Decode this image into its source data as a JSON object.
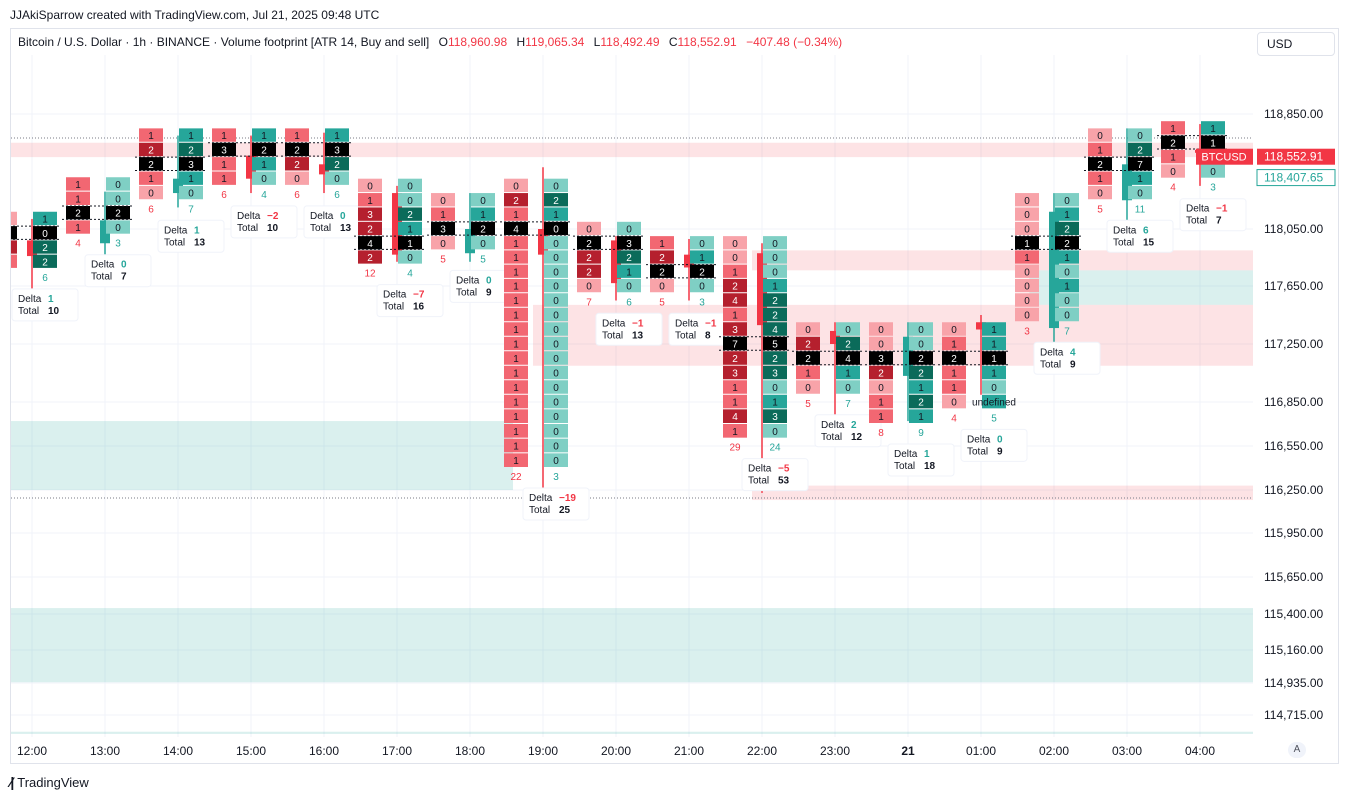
{
  "header": {
    "credit": "JJAkiSparrow created with TradingView.com, Jul 21, 2025 09:48 UTC",
    "title": "Bitcoin / U.S. Dollar · 1h · BINANCE · Volume footprint [ATR 14, Buy and sell]",
    "open_label": "O",
    "open": "118,960.98",
    "high_label": "H",
    "high": "119,065.34",
    "low_label": "L",
    "low": "118,492.49",
    "close_label": "C",
    "close": "118,552.91",
    "change": "−407.48 (−0.34%)",
    "currency": "USD"
  },
  "brand": "TradingView",
  "auto_label": "A",
  "colors": {
    "up": "#26a69a",
    "down": "#f23645",
    "dark_up": "#0b4d3f",
    "dark_down": "#6b1320",
    "poc": "#000000"
  },
  "price_tags": [
    {
      "symbol": "BTCUSD",
      "value": "118,552.91",
      "price": 118552.91,
      "color": "#f23645"
    },
    {
      "value": "118,407.65",
      "price": 118407.65,
      "color": "#26a69a"
    }
  ],
  "chart_data": {
    "type": "footprint",
    "symbol": "BTCUSD",
    "interval": "1h",
    "y_ticks": [
      118850,
      118050,
      117650,
      117250,
      116850,
      116550,
      116250,
      115950,
      115650,
      115400,
      115160,
      114935,
      114715
    ],
    "y_tick_labels": [
      "118,850.00",
      "118,050.00",
      "117,650.00",
      "117,250.00",
      "116,850.00",
      "116,550.00",
      "116,250.00",
      "115,950.00",
      "115,650.00",
      "115,400.00",
      "115,160.00",
      "114,935.00",
      "114,715.00"
    ],
    "x_ticks": [
      {
        "label": "12:00",
        "bar": 0
      },
      {
        "label": "13:00",
        "bar": 1
      },
      {
        "label": "14:00",
        "bar": 2
      },
      {
        "label": "15:00",
        "bar": 3
      },
      {
        "label": "16:00",
        "bar": 4
      },
      {
        "label": "17:00",
        "bar": 5
      },
      {
        "label": "18:00",
        "bar": 6
      },
      {
        "label": "19:00",
        "bar": 7
      },
      {
        "label": "20:00",
        "bar": 8
      },
      {
        "label": "21:00",
        "bar": 9
      },
      {
        "label": "22:00",
        "bar": 10
      },
      {
        "label": "23:00",
        "bar": 11
      },
      {
        "label": "21",
        "bar": 12,
        "bold": true
      },
      {
        "label": "01:00",
        "bar": 13
      },
      {
        "label": "02:00",
        "bar": 14
      },
      {
        "label": "03:00",
        "bar": 15
      },
      {
        "label": "04:00",
        "bar": 16
      }
    ],
    "zones": [
      {
        "from": 118650,
        "to": 118550,
        "color": "down"
      },
      {
        "from": 117900,
        "to": 117760,
        "color": "down",
        "from_bar": 10
      },
      {
        "from": 117760,
        "to": 117520,
        "color": "up",
        "from_bar": 13.8
      },
      {
        "from": 117520,
        "to": 117100,
        "color": "down",
        "from_bar": 7
      },
      {
        "from": 116720,
        "to": 116250,
        "color": "up",
        "to_bar": 7
      },
      {
        "from": 116280,
        "to": 116180,
        "color": "down",
        "from_bar": 10
      },
      {
        "from": 115440,
        "to": 114940,
        "color": "up"
      },
      {
        "from": 114600,
        "to": 114585,
        "color": "up"
      }
    ],
    "bars": [
      {
        "time": "12:00",
        "o": 117970,
        "h": 118120,
        "l": 117540,
        "c": 117860,
        "top": 118170,
        "step": 100,
        "sell": [
          0,
          1,
          2,
          1
        ],
        "buy": [
          1,
          0,
          2,
          2
        ],
        "poc": 1,
        "sell_total": 3,
        "buy_total": 6,
        "delta": "1",
        "total": "10"
      },
      {
        "time": "13:00",
        "o": 117950,
        "h": 118310,
        "l": 117850,
        "c": 118110,
        "top": 118410,
        "step": 100,
        "sell": [
          1,
          1,
          2,
          1
        ],
        "buy": [
          0,
          0,
          2,
          0
        ],
        "poc": 2,
        "sell_total": 4,
        "buy_total": 3,
        "delta": "0",
        "total": "7"
      },
      {
        "time": "14:00",
        "o": 118300,
        "h": 118700,
        "l": 118200,
        "c": 118400,
        "top": 118750,
        "step": 100,
        "sell": [
          1,
          2,
          2,
          1,
          0
        ],
        "buy": [
          1,
          2,
          3,
          1,
          0
        ],
        "poc": 2,
        "sell_total": 6,
        "buy_total": 7,
        "delta": "1",
        "total": "13"
      },
      {
        "time": "15:00",
        "o": 118560,
        "h": 118700,
        "l": 118300,
        "c": 118400,
        "top": 118750,
        "step": 100,
        "sell": [
          1,
          3,
          1,
          1
        ],
        "buy": [
          1,
          2,
          1,
          0
        ],
        "poc": 1,
        "sell_total": 6,
        "buy_total": 4,
        "delta": "−2",
        "total": "10"
      },
      {
        "time": "16:00",
        "o": 118500,
        "h": 118720,
        "l": 118300,
        "c": 118430,
        "top": 118750,
        "step": 100,
        "sell": [
          1,
          2,
          2,
          0
        ],
        "buy": [
          1,
          3,
          2,
          0
        ],
        "poc": 1,
        "sell_total": 6,
        "buy_total": 6,
        "delta": "0",
        "total": "13"
      },
      {
        "time": "17:00",
        "o": 118300,
        "h": 118350,
        "l": 117820,
        "c": 117870,
        "top": 118400,
        "step": 100,
        "sell": [
          0,
          1,
          3,
          2,
          4,
          2
        ],
        "buy": [
          0,
          0,
          2,
          1,
          1,
          0
        ],
        "poc": 4,
        "sell_total": 12,
        "buy_total": 4,
        "delta": "−7",
        "total": "16"
      },
      {
        "time": "18:00",
        "o": 117880,
        "h": 118300,
        "l": 117820,
        "c": 118050,
        "top": 118300,
        "step": 100,
        "sell": [
          0,
          1,
          3,
          0
        ],
        "buy": [
          0,
          1,
          2,
          0
        ],
        "poc": 2,
        "sell_total": 5,
        "buy_total": 5,
        "delta": "0",
        "total": "9"
      },
      {
        "time": "19:00",
        "o": 118050,
        "h": 118480,
        "l": 116130,
        "c": 117870,
        "top": 118400,
        "step": 100,
        "sell": [
          0,
          2,
          1,
          4,
          1,
          1,
          1,
          1,
          1,
          1,
          1,
          1,
          1,
          1,
          1,
          1,
          1,
          1,
          1,
          1
        ],
        "buy": [
          0,
          2,
          1,
          0,
          0,
          0,
          0,
          0,
          0,
          0,
          0,
          0,
          0,
          0,
          0,
          0,
          0,
          0,
          0,
          0
        ],
        "poc": 3,
        "sell_total": 22,
        "buy_total": 3,
        "delta": "−19",
        "total": "25"
      },
      {
        "time": "20:00",
        "o": 117970,
        "h": 118000,
        "l": 117550,
        "c": 117670,
        "top": 118100,
        "step": 100,
        "sell": [
          0,
          2,
          2,
          2,
          0
        ],
        "buy": [
          0,
          3,
          2,
          1,
          0
        ],
        "poc": 1,
        "sell_total": 7,
        "buy_total": 6,
        "delta": "−1",
        "total": "13"
      },
      {
        "time": "21:00",
        "o": 117870,
        "h": 117980,
        "l": 117550,
        "c": 117780,
        "top": 118000,
        "step": 100,
        "sell": [
          1,
          2,
          2,
          0
        ],
        "buy": [
          0,
          1,
          2,
          0
        ],
        "poc": 2,
        "sell_total": 5,
        "buy_total": 3,
        "delta": "−1",
        "total": "8"
      },
      {
        "time": "22:00",
        "o": 117880,
        "h": 117950,
        "l": 116230,
        "c": 117380,
        "top": 118000,
        "step": 100,
        "sell": [
          0,
          0,
          1,
          2,
          4,
          1,
          3,
          7,
          2,
          3,
          1,
          1,
          4,
          1
        ],
        "buy": [
          0,
          0,
          0,
          1,
          2,
          2,
          4,
          5,
          2,
          3,
          0,
          1,
          3,
          0
        ],
        "poc": 7,
        "sell_total": 29,
        "buy_total": 24,
        "delta": "−5",
        "total": "53"
      },
      {
        "time": "23:00",
        "o": 117340,
        "h": 117400,
        "l": 116720,
        "c": 117250,
        "top": 117400,
        "step": 100,
        "sell": [
          0,
          2,
          2,
          1,
          0
        ],
        "buy": [
          0,
          2,
          4,
          1,
          0
        ],
        "poc": 2,
        "sell_total": 5,
        "buy_total": 7,
        "delta": "2",
        "total": "12"
      },
      {
        "time": "00:00",
        "o": 117030,
        "h": 117400,
        "l": 116720,
        "c": 117300,
        "top": 117400,
        "step": 100,
        "sell": [
          0,
          0,
          3,
          2,
          0,
          1,
          1
        ],
        "buy": [
          0,
          0,
          2,
          2,
          1,
          2,
          1
        ],
        "poc": 2,
        "sell_total": 8,
        "buy_total": 9,
        "delta": "1",
        "total": "18"
      },
      {
        "time": "01:00",
        "o": 117400,
        "h": 117450,
        "l": 116900,
        "c": 117350,
        "top": 117400,
        "step": 100,
        "sell": [
          0,
          1,
          2,
          1,
          1,
          0
        ],
        "buy": [
          1,
          1,
          1,
          1,
          0
        ],
        "poc": 2,
        "sell_total": 4,
        "buy_total": 5,
        "delta": "0",
        "total": "9"
      },
      {
        "time": "02:00",
        "o": 117360,
        "h": 118300,
        "l": 117250,
        "c": 118170,
        "top": 118300,
        "step": 100,
        "sell": [
          0,
          0,
          0,
          1,
          1,
          0,
          0,
          0,
          0
        ],
        "buy": [
          0,
          1,
          2,
          2,
          1,
          0,
          1,
          0,
          0
        ],
        "poc": 3,
        "sell_total": 3,
        "buy_total": 7,
        "delta": "4",
        "total": "9"
      },
      {
        "time": "03:00",
        "o": 118250,
        "h": 118750,
        "l": 118000,
        "c": 118500,
        "top": 118750,
        "step": 100,
        "sell": [
          0,
          1,
          2,
          1,
          0
        ],
        "buy": [
          0,
          2,
          7,
          1,
          0
        ],
        "poc": 2,
        "sell_total": 5,
        "buy_total": 11,
        "delta": "6",
        "total": "15"
      },
      {
        "time": "04:00",
        "o": 118600,
        "h": 118780,
        "l": 118350,
        "c": 118580,
        "top": 118800,
        "step": 100,
        "sell": [
          1,
          2,
          1,
          0
        ],
        "buy": [
          1,
          1,
          1,
          0
        ],
        "poc": 1,
        "sell_total": 4,
        "buy_total": 3,
        "delta": "−1",
        "total": "7"
      }
    ]
  }
}
